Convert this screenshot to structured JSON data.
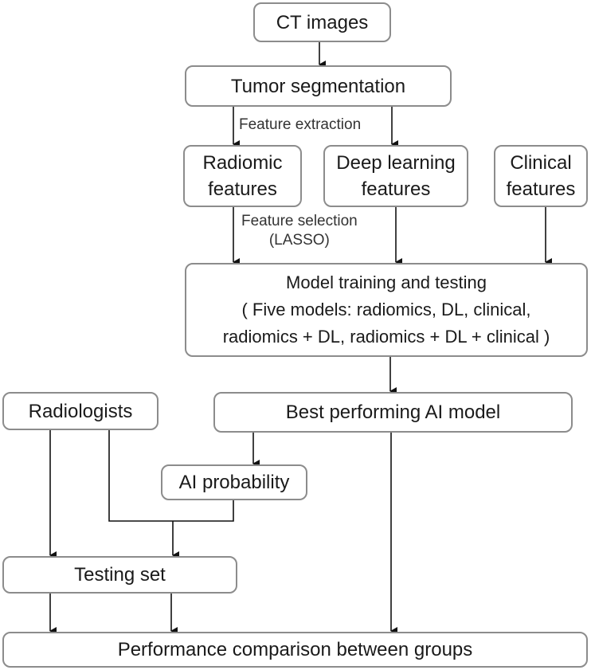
{
  "nodes": {
    "ct_images": "CT images",
    "tumor_segmentation": "Tumor segmentation",
    "radiomic_features": [
      "Radiomic",
      "features"
    ],
    "deep_learning_features": [
      "Deep learning",
      "features"
    ],
    "clinical_features": [
      "Clinical",
      "features"
    ],
    "model_training": [
      "Model training and testing",
      "( Five models: radiomics, DL, clinical,",
      "radiomics + DL, radiomics + DL + clinical )"
    ],
    "radiologists": "Radiologists",
    "best_model": "Best performing AI model",
    "ai_probability": "AI probability",
    "testing_set": "Testing set",
    "performance_comparison": "Performance comparison between groups"
  },
  "edge_labels": {
    "feature_extraction": "Feature extraction",
    "feature_selection": [
      "Feature selection",
      "(LASSO)"
    ]
  }
}
